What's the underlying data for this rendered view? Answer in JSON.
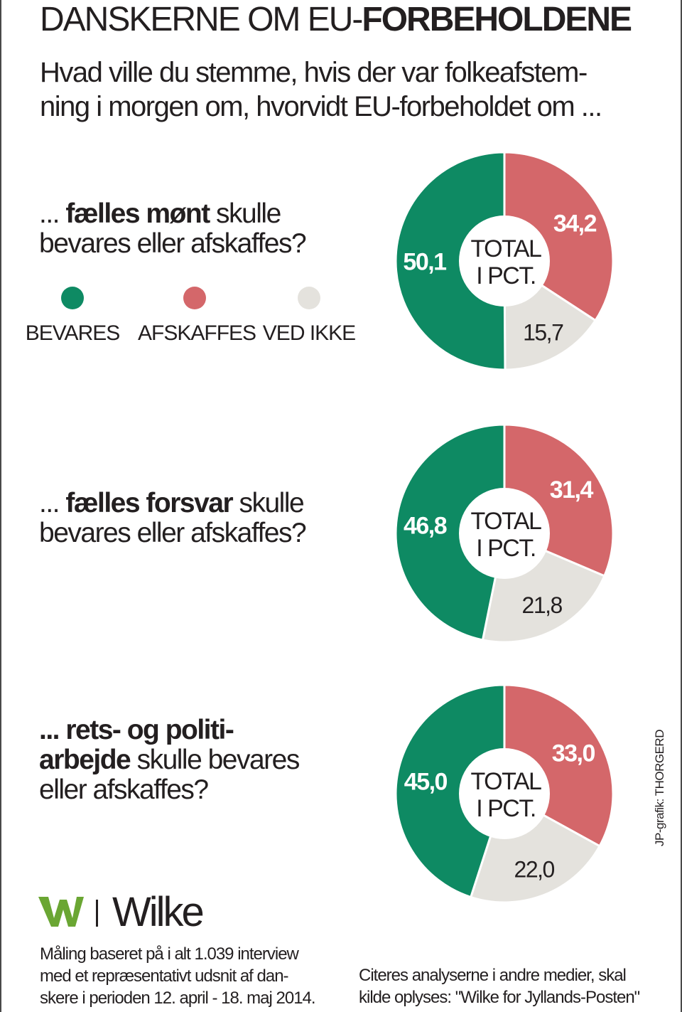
{
  "header": {
    "title_light": "DANSKERNE OM EU-",
    "title_bold": "FORBEHOLDENE",
    "subtitle_line1": "Hvad ville du stemme, hvis der var folkeafstem-",
    "subtitle_line2": "ning i morgen om, hvorvidt EU-forbeholdet om ..."
  },
  "legend": {
    "items": [
      {
        "label": "BEVARES",
        "color": "#0e8a63"
      },
      {
        "label": "AFSKAFFES",
        "color": "#d4676a"
      },
      {
        "label": "VED IKKE",
        "color": "#e4e2dd"
      }
    ]
  },
  "questions": [
    {
      "prefix": "... ",
      "bold": "fælles mønt",
      "rest_line1": " skulle",
      "line2": "bevares eller afskaffes?"
    },
    {
      "prefix": "... ",
      "bold": "fælles forsvar",
      "rest_line1": " skulle",
      "line2": "bevares eller afskaffes?"
    },
    {
      "line1_bold": "... rets- og politi-",
      "line2_bold": "arbejde",
      "line2_rest": " skulle bevares",
      "line3": "eller afskaffes?"
    }
  ],
  "center_label": {
    "line1": "TOTAL",
    "line2": "I PCT."
  },
  "chart_data": [
    {
      "type": "pie",
      "categories": [
        "BEVARES",
        "AFSKAFFES",
        "VED IKKE"
      ],
      "values": [
        50.1,
        34.2,
        15.7
      ],
      "labels": [
        "50,1",
        "34,2",
        "15,7"
      ],
      "colors": [
        "#0e8a63",
        "#d4676a",
        "#e4e2dd"
      ]
    },
    {
      "type": "pie",
      "categories": [
        "BEVARES",
        "AFSKAFFES",
        "VED IKKE"
      ],
      "values": [
        46.8,
        31.4,
        21.8
      ],
      "labels": [
        "46,8",
        "31,4",
        "21,8"
      ],
      "colors": [
        "#0e8a63",
        "#d4676a",
        "#e4e2dd"
      ]
    },
    {
      "type": "pie",
      "categories": [
        "BEVARES",
        "AFSKAFFES",
        "VED IKKE"
      ],
      "values": [
        45.0,
        33.0,
        22.0
      ],
      "labels": [
        "45,0",
        "33,0",
        "22,0"
      ],
      "colors": [
        "#0e8a63",
        "#d4676a",
        "#e4e2dd"
      ]
    }
  ],
  "brand": {
    "name": "Wilke",
    "logo_icon": "wilke-w-logo",
    "logo_color": "#6aa633"
  },
  "footer": {
    "method_line1": "Måling baseret på i alt 1.039 interview",
    "method_line2": "med et repræsentativt udsnit af dan-",
    "method_line3": "skere i perioden 12. april - 18. maj 2014.",
    "source_line1": "Citeres analyserne i andre medier, skal",
    "source_line2": "kilde oplyses: \"Wilke for Jyllands-Posten\"",
    "credit": "JP-grafik: THORGERD"
  }
}
